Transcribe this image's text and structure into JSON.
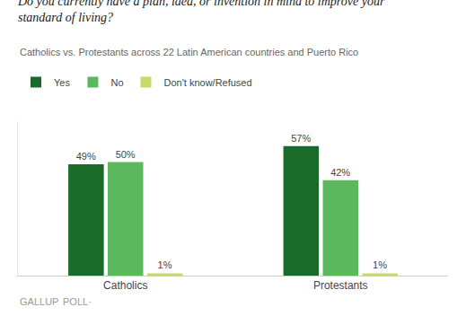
{
  "chart_data": {
    "type": "bar",
    "title": "Do you currently have a plan, idea, or invention in mind to improve your standard of living?",
    "subtitle": "Catholics vs. Protestants across 22 Latin American countries and Puerto Rico",
    "categories": [
      "Catholics",
      "Protestants"
    ],
    "series": [
      {
        "name": "Yes",
        "color": "#1a6b2a",
        "values": [
          49,
          57
        ],
        "value_labels": [
          "49%",
          "57%"
        ]
      },
      {
        "name": "No",
        "color": "#5cb85c",
        "values": [
          50,
          42
        ],
        "value_labels": [
          "50%",
          "42%"
        ]
      },
      {
        "name": "Don't know/Refused",
        "color": "#c8d96a",
        "values": [
          1,
          1
        ],
        "value_labels": [
          "1%",
          "1%"
        ]
      }
    ],
    "ylim": [
      0,
      68
    ],
    "data_labels": true,
    "tick_labels": "x",
    "grid": false,
    "legend": "top left",
    "annotations": [
      "GALLUP",
      "POLL·"
    ]
  }
}
